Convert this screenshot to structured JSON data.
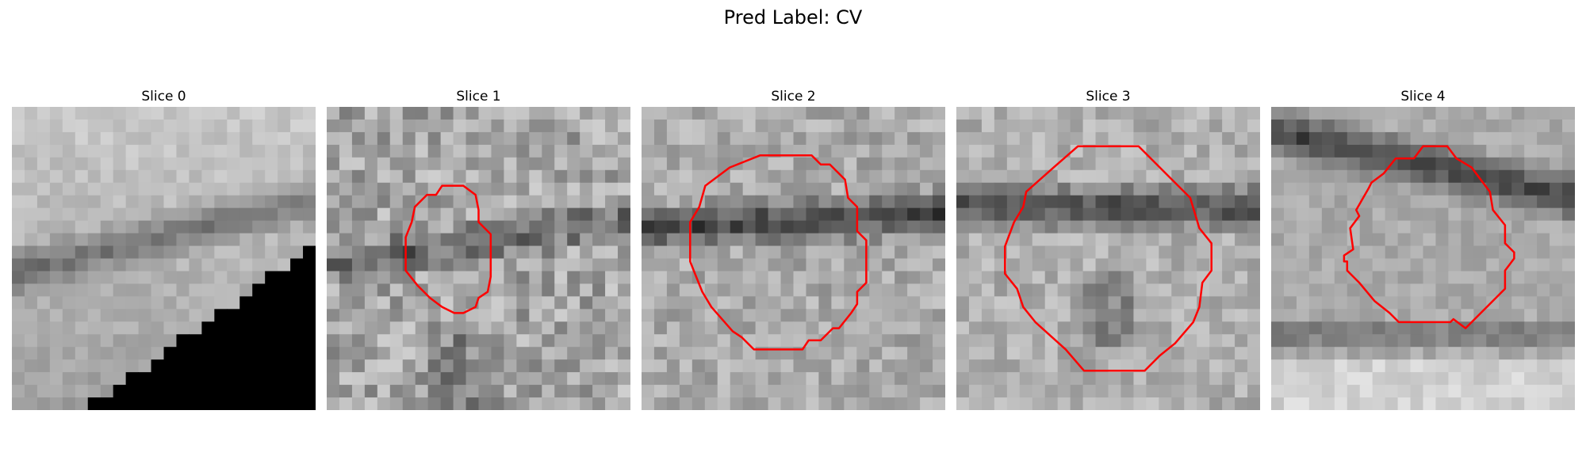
{
  "figure": {
    "title": "Pred Label: CV"
  },
  "slices": [
    {
      "title": "Slice 0"
    },
    {
      "title": "Slice 1"
    },
    {
      "title": "Slice 2"
    },
    {
      "title": "Slice 3"
    },
    {
      "title": "Slice 4"
    }
  ],
  "colors": {
    "contour": "#ff0000",
    "background": "#ffffff"
  }
}
